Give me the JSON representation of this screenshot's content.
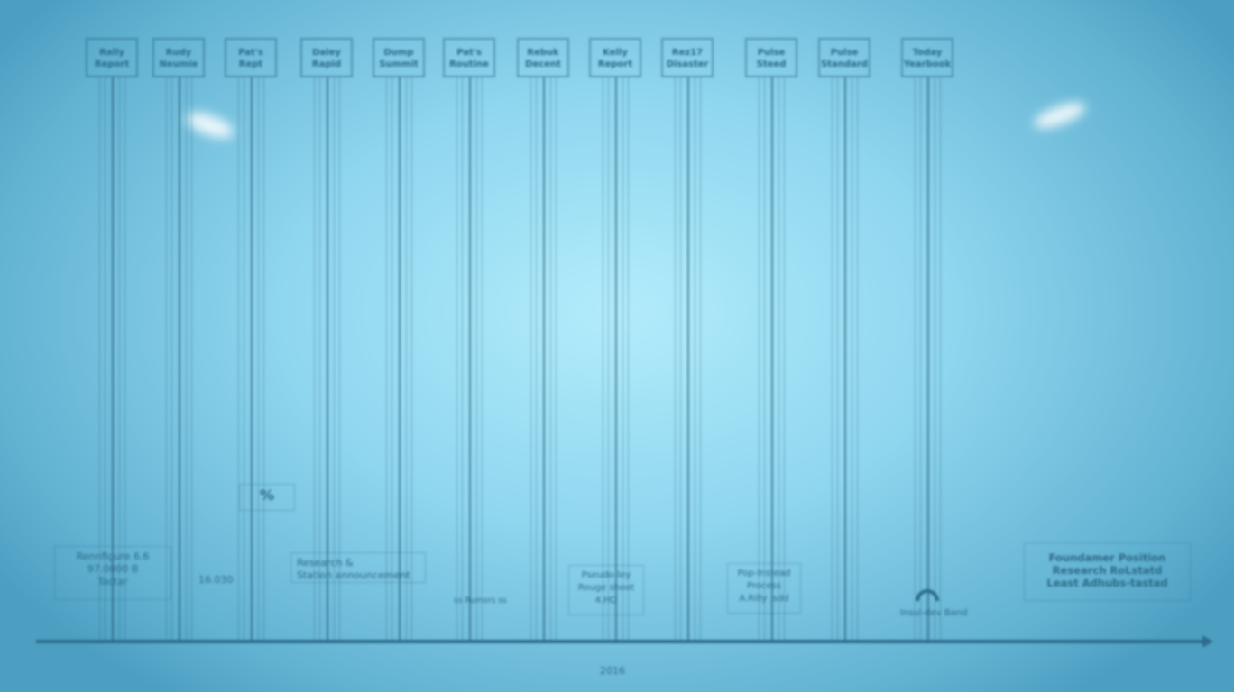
{
  "top_events": [
    {
      "line1": "Rally",
      "line2": "Report"
    },
    {
      "line1": "Rudy",
      "line2": "Neumie"
    },
    {
      "line1": "Pat's",
      "line2": "Rept"
    },
    {
      "line1": "Daley",
      "line2": "Rapid"
    },
    {
      "line1": "Dump",
      "line2": "Summit"
    },
    {
      "line1": "Pat's",
      "line2": "Routine"
    },
    {
      "line1": "Rebuk",
      "line2": "Decent"
    },
    {
      "line1": "Kelly",
      "line2": "Report"
    },
    {
      "line1": "Rez17",
      "line2": "Disaster"
    },
    {
      "line1": "Pulse",
      "line2": "Steed"
    },
    {
      "line1": "Pulse",
      "line2": "Standard"
    },
    {
      "line1": "Today",
      "line2": "Yearbook"
    }
  ],
  "bottom_notes": {
    "n1": [
      "Rennfigure 6.6",
      "97.0000 B",
      "Tactar"
    ],
    "n2": "16.030",
    "n3": "%",
    "n4": [
      "Research &",
      "Station announcement"
    ],
    "n5": "ss Rumors ss",
    "n6": [
      "Pseudo-ley",
      "Rouge shoot",
      "4.HD"
    ],
    "n7": [
      "Pop-Instead",
      "Process",
      "A.Rilly .sdd"
    ],
    "n8": "Insul-dev Band",
    "n9": [
      "Foundamer Position",
      "Research RoLstatd",
      "Least Adhubs-tastad"
    ]
  },
  "axis_label": "2016",
  "colors": {
    "axis": "#2c6c8c",
    "background": "#8fd6ef"
  },
  "icons": {
    "n8": "arc-icon"
  }
}
